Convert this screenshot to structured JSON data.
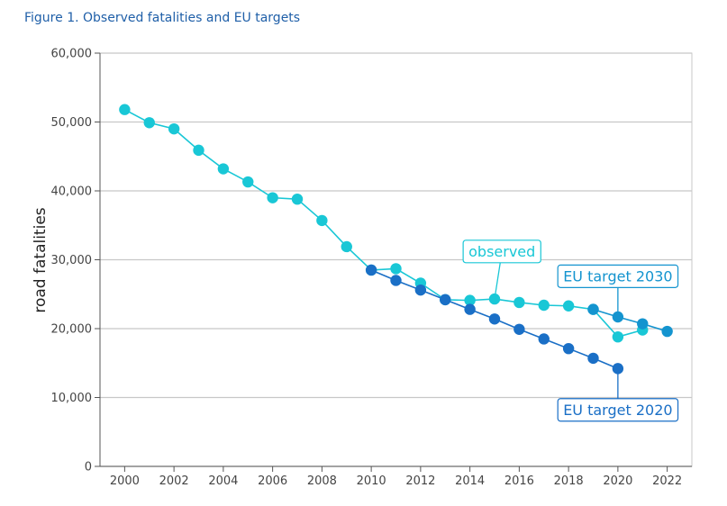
{
  "figure_title": "Figure 1. Observed fatalities and EU targets",
  "colors": {
    "observed": "#19c7d6",
    "target_2020": "#1a6fc6",
    "target_2030": "#1494cf",
    "grid": "#c8c8c8",
    "axis": "#555555"
  },
  "chart_data": {
    "type": "line",
    "title": "Figure 1. Observed fatalities and EU targets",
    "xlabel": "",
    "ylabel": "road fatalities",
    "xlim": [
      1999,
      2023
    ],
    "ylim": [
      0,
      60000
    ],
    "x_ticks": [
      2000,
      2002,
      2004,
      2006,
      2008,
      2010,
      2012,
      2014,
      2016,
      2018,
      2020,
      2022
    ],
    "y_ticks": [
      0,
      10000,
      20000,
      30000,
      40000,
      50000,
      60000
    ],
    "y_tick_labels": [
      "0",
      "10,000",
      "20,000",
      "30,000",
      "40,000",
      "50,000",
      "60,000"
    ],
    "grid": true,
    "series": [
      {
        "name": "observed",
        "color": "#19c7d6",
        "x": [
          2000,
          2001,
          2002,
          2003,
          2004,
          2005,
          2006,
          2007,
          2008,
          2009,
          2010,
          2011,
          2012,
          2013,
          2014,
          2015,
          2016,
          2017,
          2018,
          2019,
          2020,
          2021
        ],
        "y": [
          51800,
          49900,
          49000,
          45900,
          43200,
          41300,
          39000,
          38800,
          35700,
          31900,
          28500,
          28700,
          26600,
          24200,
          24100,
          24300,
          23800,
          23400,
          23300,
          22800,
          18800,
          19800
        ]
      },
      {
        "name": "EU target 2020",
        "color": "#1a6fc6",
        "x": [
          2010,
          2011,
          2012,
          2013,
          2014,
          2015,
          2016,
          2017,
          2018,
          2019,
          2020
        ],
        "y": [
          28500,
          27000,
          25600,
          24200,
          22800,
          21400,
          19900,
          18500,
          17100,
          15700,
          14200
        ]
      },
      {
        "name": "EU target 2030",
        "color": "#1494cf",
        "x": [
          2019,
          2020,
          2021,
          2022
        ],
        "y": [
          22800,
          21700,
          20700,
          19600
        ]
      }
    ],
    "annotations": [
      {
        "text": "observed",
        "series": "observed",
        "anchor_x": 2015,
        "anchor_y": 24300,
        "label_x": 2015.3,
        "label_y": 31200,
        "color": "#19c7d6"
      },
      {
        "text": "EU target 2030",
        "series": "EU target 2030",
        "anchor_x": 2020,
        "anchor_y": 21700,
        "label_x": 2020,
        "label_y": 27600,
        "color": "#1494cf"
      },
      {
        "text": "EU target 2020",
        "series": "EU target 2020",
        "anchor_x": 2020,
        "anchor_y": 14200,
        "label_x": 2020,
        "label_y": 8200,
        "color": "#1a6fc6"
      }
    ]
  }
}
